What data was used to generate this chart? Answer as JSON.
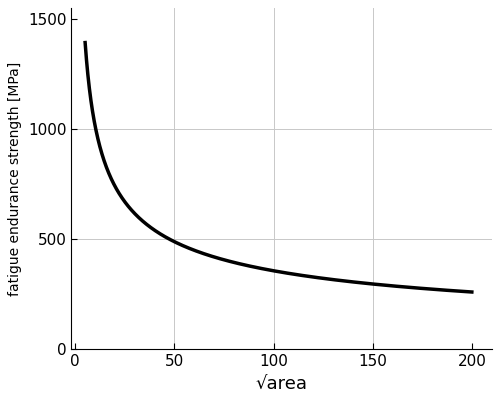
{
  "x_start": 5,
  "x_end": 200,
  "x_ticks": [
    0,
    50,
    100,
    150,
    200
  ],
  "y_ticks": [
    0,
    500,
    1000,
    1500
  ],
  "xlim": [
    -2,
    210
  ],
  "ylim": [
    0,
    1550
  ],
  "xlabel": "√area",
  "ylabel": "fatigue endurance strength [MPa]",
  "line_color": "#000000",
  "line_width": 2.5,
  "grid_color": "#c8c8c8",
  "grid_linewidth": 0.7,
  "background_color": "#ffffff",
  "tick_labelsize": 11,
  "xlabel_fontsize": 13,
  "ylabel_fontsize": 10,
  "A": 3300.0,
  "exponent": 0.5
}
